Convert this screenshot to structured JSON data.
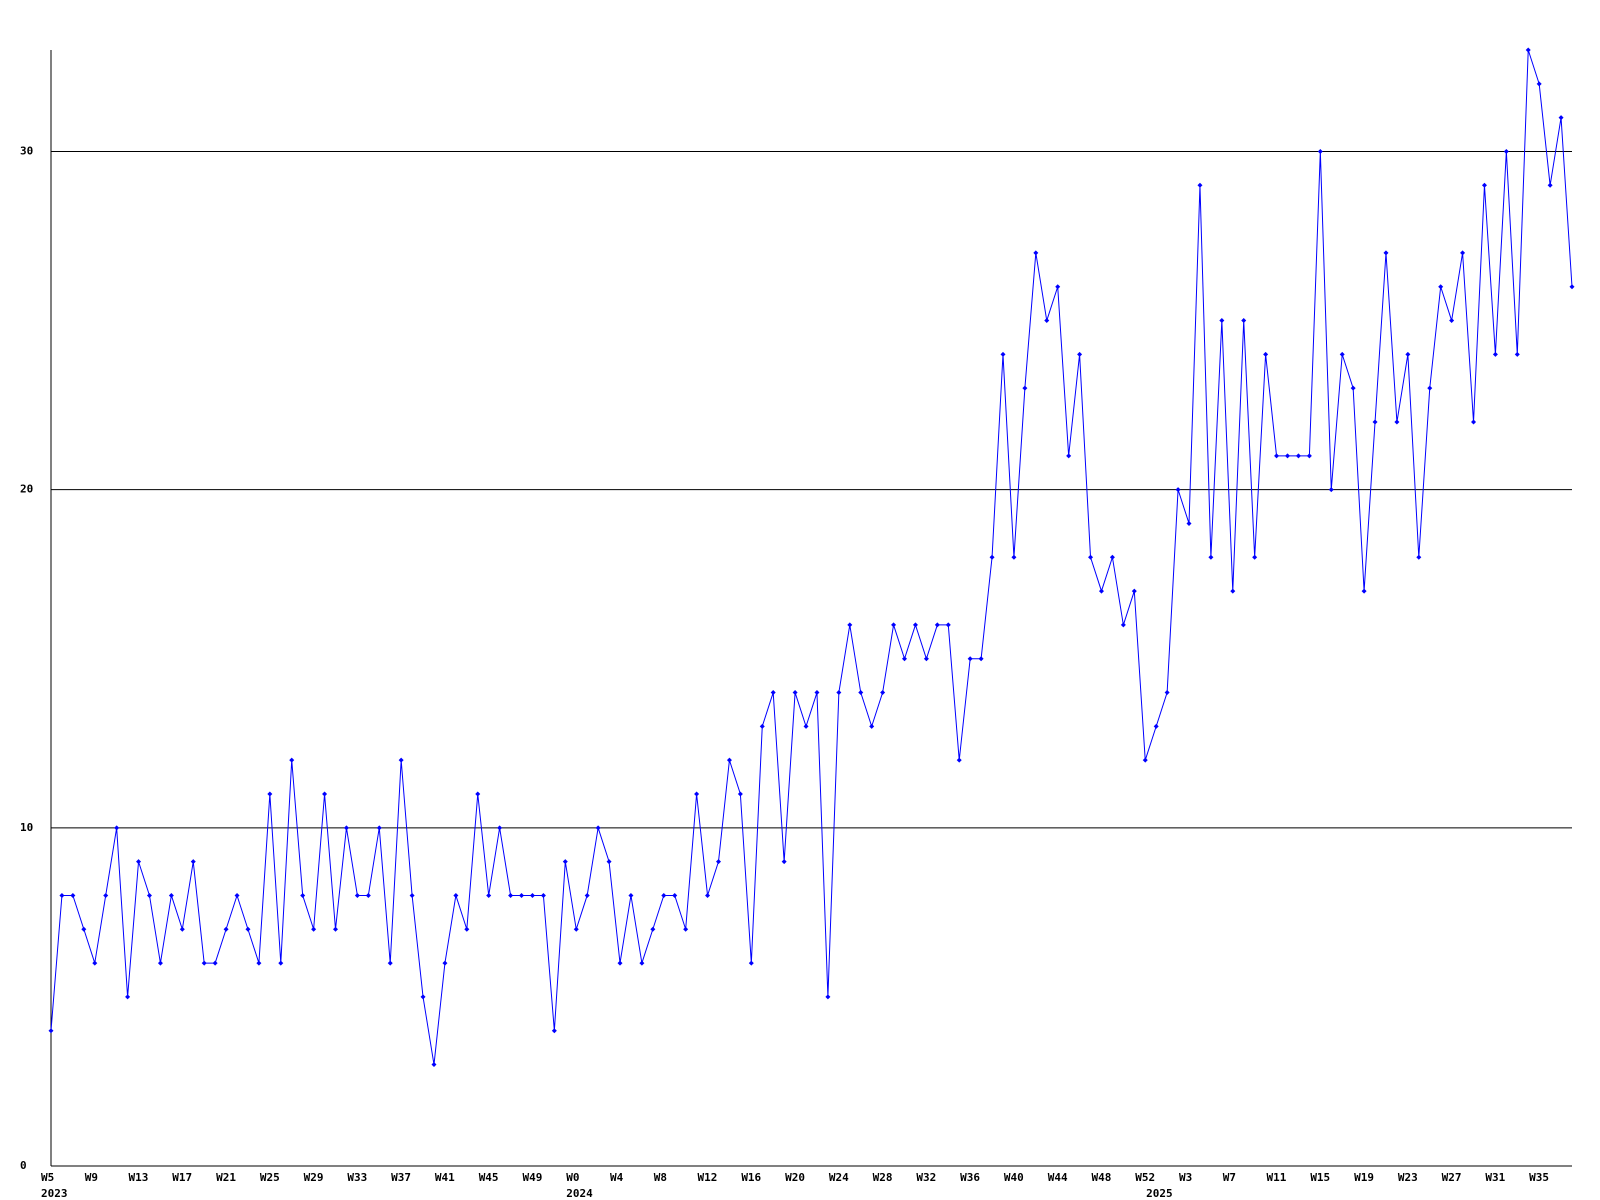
{
  "chart_data": {
    "type": "line",
    "categories": [
      "W5",
      null,
      null,
      null,
      "W9",
      null,
      null,
      null,
      "W13",
      null,
      null,
      null,
      "W17",
      null,
      null,
      null,
      "W21",
      null,
      null,
      null,
      "W25",
      null,
      null,
      null,
      "W29",
      null,
      null,
      null,
      "W33",
      null,
      null,
      null,
      "W37",
      null,
      null,
      null,
      "W41",
      null,
      null,
      null,
      "W45",
      null,
      null,
      null,
      "W49",
      null,
      null,
      null,
      "W0",
      null,
      null,
      null,
      "W4",
      null,
      null,
      null,
      "W8",
      null,
      null,
      null,
      "W12",
      null,
      null,
      null,
      "W16",
      null,
      null,
      null,
      "W20",
      null,
      null,
      null,
      "W24",
      null,
      null,
      null,
      "W28",
      null,
      null,
      null,
      "W32",
      null,
      null,
      null,
      "W36",
      null,
      null,
      null,
      "W40",
      null,
      null,
      null,
      "W44",
      null,
      null,
      null,
      "W48",
      null,
      null,
      null,
      "W52",
      null,
      null,
      null,
      "W3",
      null,
      null,
      null,
      "W7",
      null,
      null,
      null,
      "W11",
      null,
      null,
      null,
      "W15",
      null,
      null,
      null,
      "W19",
      null,
      null,
      null,
      "W23",
      null,
      null,
      null,
      "W27",
      null,
      null,
      null,
      "W31",
      null,
      null,
      null,
      "W35",
      null,
      null,
      null
    ],
    "x_groups": [
      {
        "label": "2023",
        "start": 0
      },
      {
        "label": "2024",
        "start": 48
      },
      {
        "label": "2025",
        "start": 101
      }
    ],
    "series": [
      {
        "color": "#0000ff",
        "values": [
          4,
          8,
          8,
          7,
          6,
          8,
          10,
          5,
          9,
          8,
          6,
          8,
          7,
          9,
          6,
          6,
          7,
          8,
          7,
          6,
          11,
          6,
          12,
          8,
          7,
          11,
          7,
          10,
          8,
          8,
          10,
          6,
          12,
          8,
          5,
          3,
          6,
          8,
          7,
          11,
          8,
          10,
          8,
          8,
          8,
          8,
          4,
          9,
          7,
          8,
          10,
          9,
          6,
          8,
          6,
          7,
          8,
          8,
          7,
          11,
          8,
          9,
          12,
          11,
          6,
          13,
          14,
          9,
          14,
          13,
          14,
          5,
          14,
          16,
          14,
          13,
          14,
          16,
          15,
          16,
          15,
          16,
          16,
          12,
          15,
          15,
          18,
          24,
          18,
          23,
          27,
          25,
          26,
          21,
          24,
          18,
          17,
          18,
          16,
          17,
          12,
          13,
          14,
          20,
          19,
          29,
          18,
          25,
          17,
          25,
          18,
          24,
          21,
          21,
          21,
          21,
          30,
          20,
          24,
          23,
          17,
          22,
          27,
          22,
          24,
          18,
          23,
          26,
          25,
          27,
          22,
          29,
          24,
          30,
          24,
          33,
          32,
          29,
          31,
          26
        ]
      }
    ],
    "ylim": [
      0,
      33
    ],
    "yticks": [
      0,
      10,
      20,
      30
    ],
    "grid": true
  }
}
